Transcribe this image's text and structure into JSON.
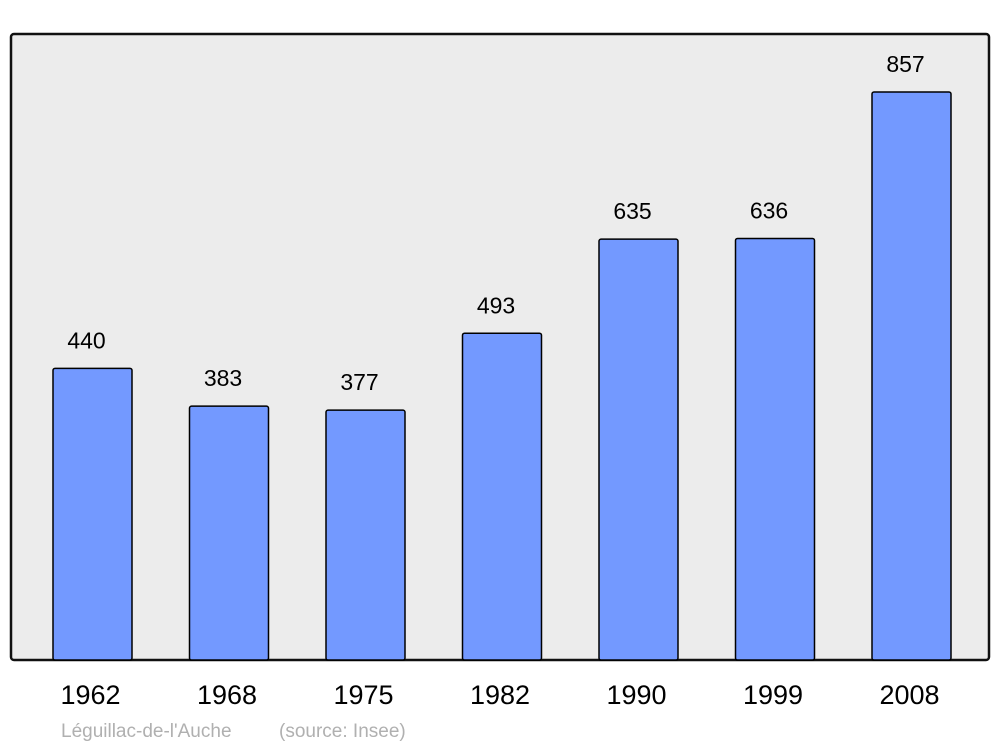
{
  "chart_data": {
    "type": "bar",
    "categories": [
      "1962",
      "1968",
      "1975",
      "1982",
      "1990",
      "1999",
      "2008"
    ],
    "values": [
      440,
      383,
      377,
      493,
      635,
      636,
      857
    ],
    "data_labels": [
      "440",
      "383",
      "377",
      "493",
      "635",
      "636",
      "857"
    ],
    "title": "",
    "xlabel": "",
    "ylabel": "",
    "ylim": [
      0,
      943
    ],
    "grid": false,
    "legend": "none",
    "colors": {
      "bar": "#7399ff",
      "bar_stroke": "#000000",
      "plot_background": "#ececec"
    }
  },
  "footer": {
    "place": "Léguillac-de-l'Auche",
    "source": "(source: Insee)"
  }
}
